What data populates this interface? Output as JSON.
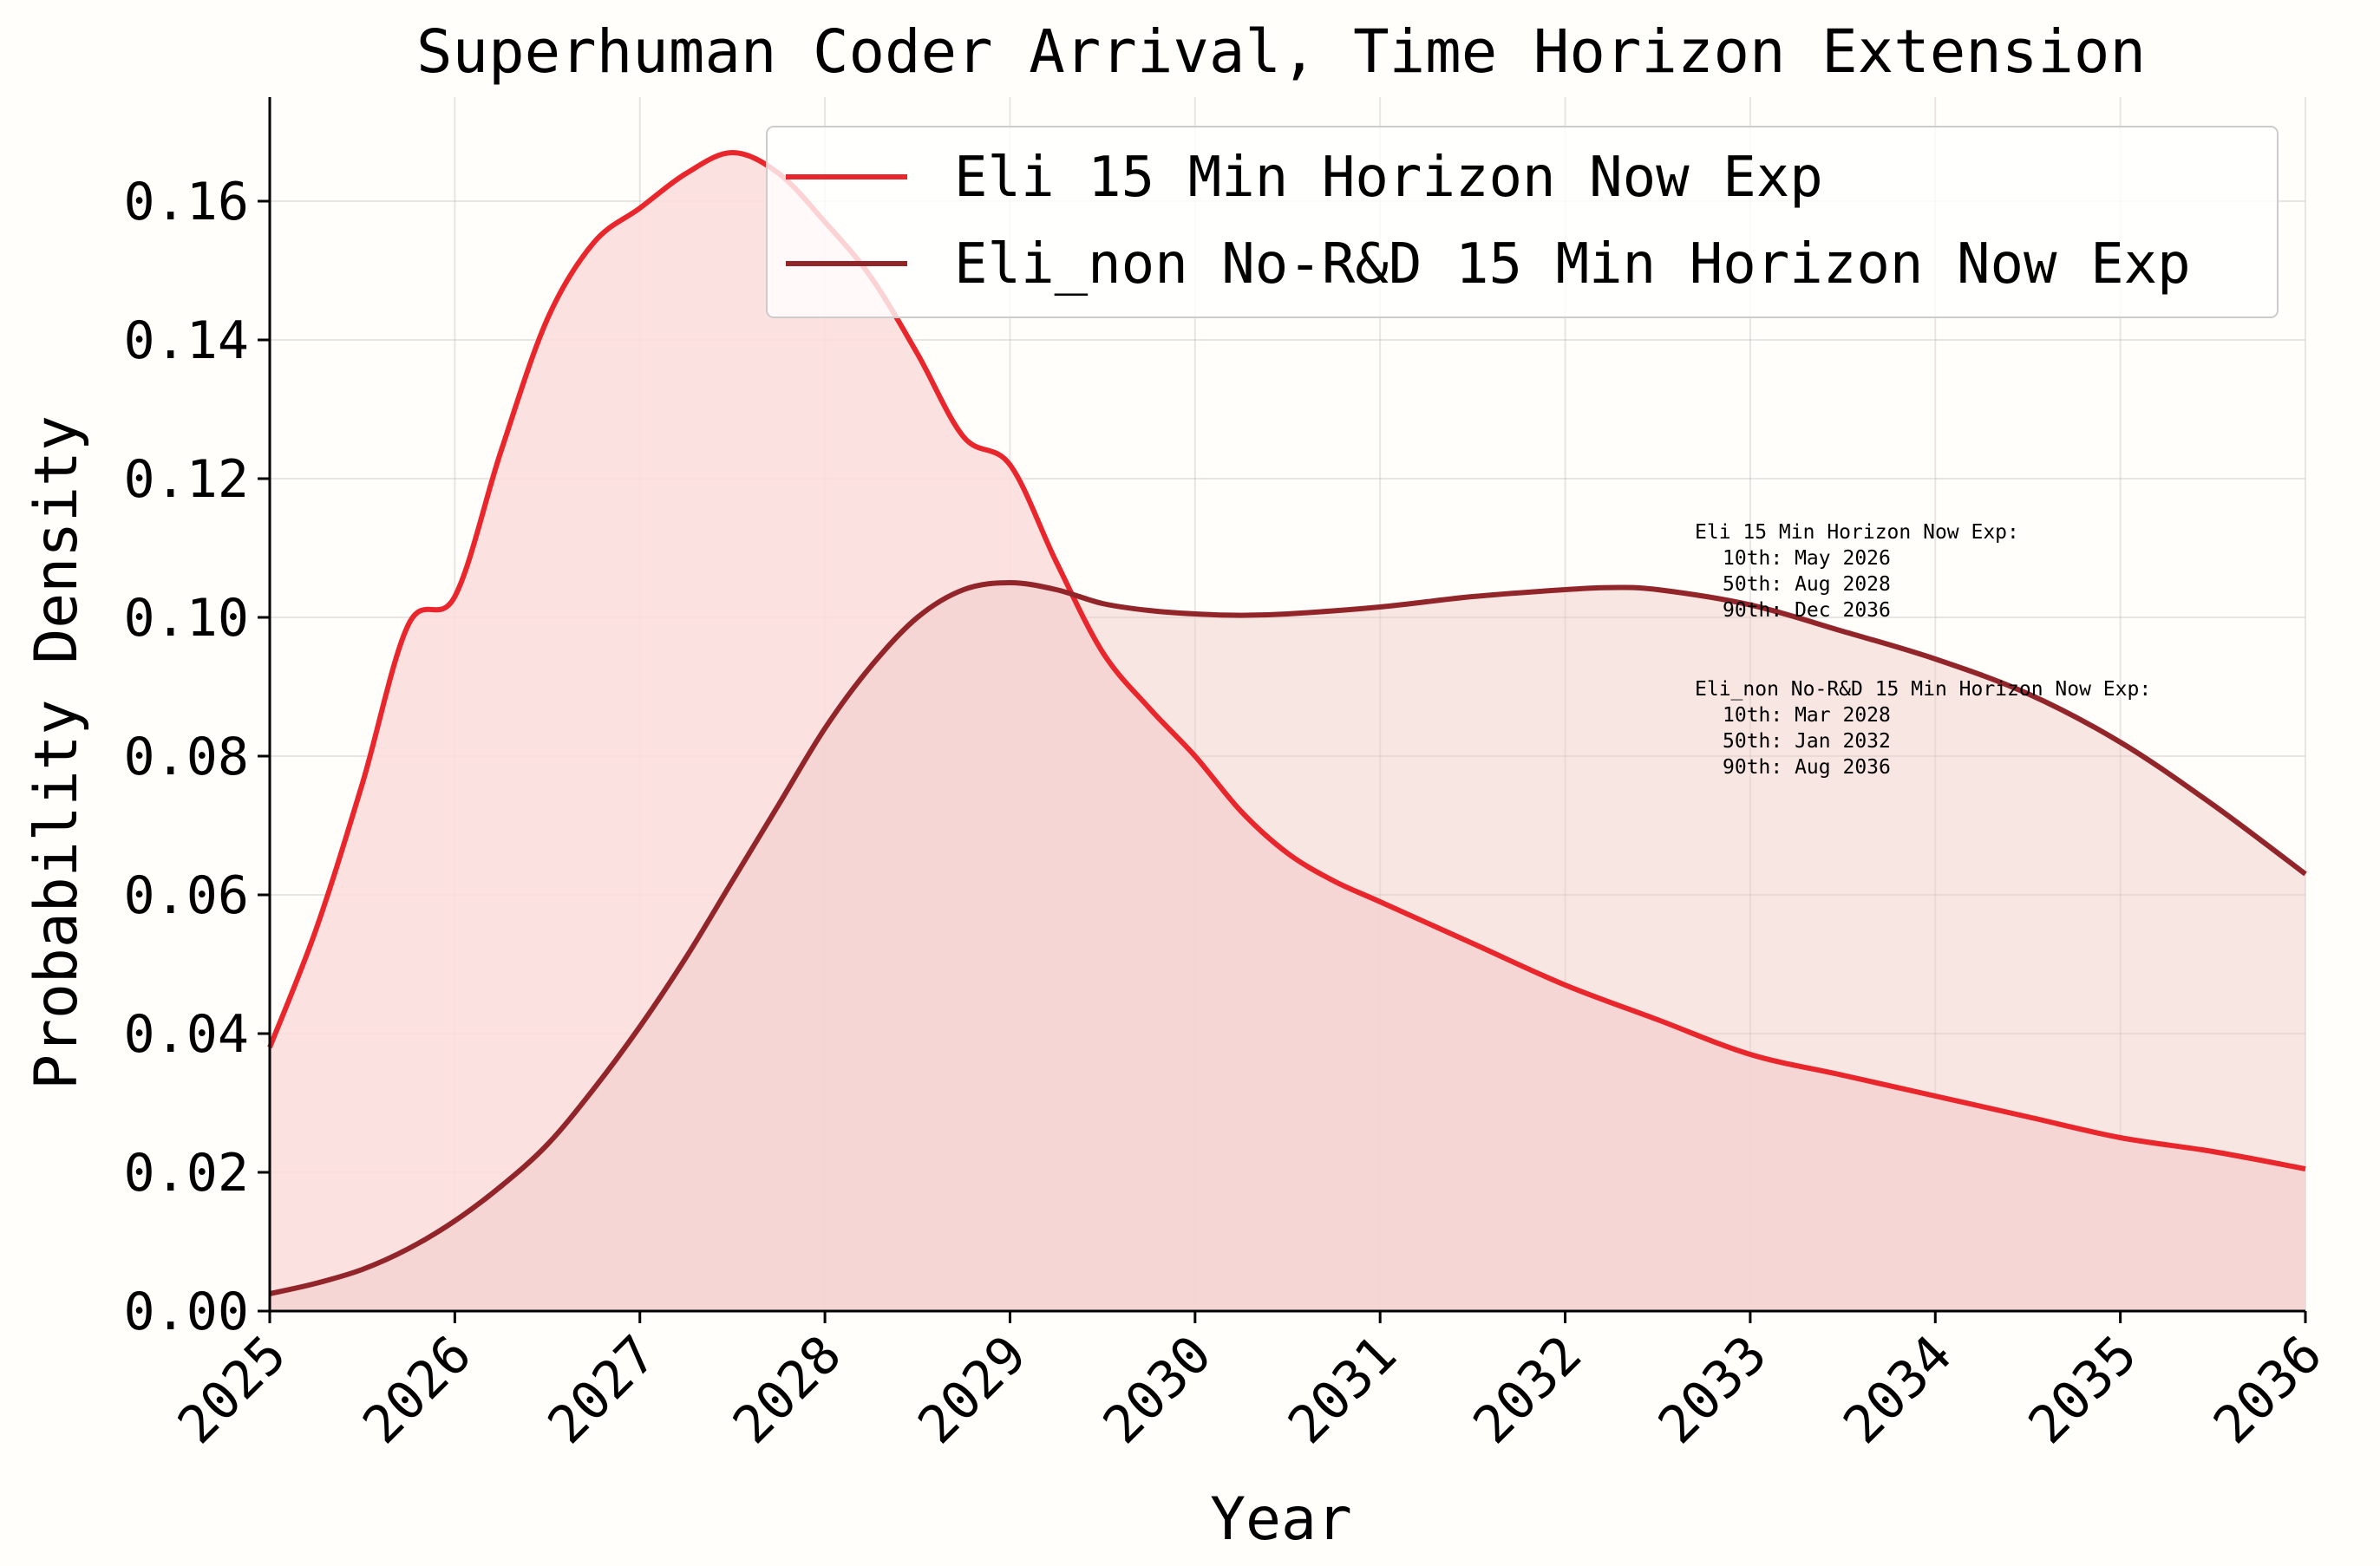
{
  "chart_data": {
    "type": "area",
    "title": "Superhuman Coder Arrival, Time Horizon Extension",
    "xlabel": "Year",
    "ylabel": "Probability Density",
    "xlim": [
      2025,
      2036
    ],
    "ylim": [
      0,
      0.175
    ],
    "x_ticks": [
      "2025",
      "2026",
      "2027",
      "2028",
      "2029",
      "2030",
      "2031",
      "2032",
      "2033",
      "2034",
      "2035",
      "2036"
    ],
    "y_ticks": [
      "0.00",
      "0.02",
      "0.04",
      "0.06",
      "0.08",
      "0.10",
      "0.12",
      "0.14",
      "0.16"
    ],
    "grid": true,
    "legend_position": "top-right",
    "series": [
      {
        "name": "Eli 15 Min Horizon Now Exp",
        "color": "#e8262b",
        "fill": "#fcdcdc",
        "x": [
          2025.0,
          2025.25,
          2025.5,
          2025.75,
          2026.0,
          2026.25,
          2026.5,
          2026.75,
          2027.0,
          2027.25,
          2027.5,
          2027.75,
          2028.0,
          2028.25,
          2028.5,
          2028.75,
          2029.0,
          2029.25,
          2029.5,
          2029.75,
          2030.0,
          2030.25,
          2030.5,
          2030.75,
          2031.0,
          2031.5,
          2032.0,
          2032.5,
          2033.0,
          2033.5,
          2034.0,
          2034.5,
          2035.0,
          2035.5,
          2036.0
        ],
        "y": [
          0.038,
          0.055,
          0.076,
          0.099,
          0.103,
          0.124,
          0.143,
          0.154,
          0.159,
          0.164,
          0.167,
          0.164,
          0.157,
          0.149,
          0.138,
          0.126,
          0.122,
          0.108,
          0.095,
          0.087,
          0.08,
          0.072,
          0.066,
          0.062,
          0.059,
          0.053,
          0.047,
          0.042,
          0.037,
          0.034,
          0.031,
          0.028,
          0.025,
          0.023,
          0.0205
        ]
      },
      {
        "name": "Eli_non No-R&D 15 Min Horizon Now Exp",
        "color": "#922529",
        "fill": "#efc9c6",
        "x": [
          2025.0,
          2025.25,
          2025.5,
          2025.75,
          2026.0,
          2026.25,
          2026.5,
          2026.75,
          2027.0,
          2027.25,
          2027.5,
          2027.75,
          2028.0,
          2028.25,
          2028.5,
          2028.75,
          2029.0,
          2029.25,
          2029.5,
          2029.75,
          2030.0,
          2030.25,
          2030.5,
          2031.0,
          2031.5,
          2032.0,
          2032.25,
          2032.5,
          2033.0,
          2033.5,
          2034.0,
          2034.5,
          2035.0,
          2035.5,
          2036.0
        ],
        "y": [
          0.0025,
          0.004,
          0.006,
          0.009,
          0.013,
          0.018,
          0.024,
          0.032,
          0.041,
          0.051,
          0.062,
          0.073,
          0.084,
          0.093,
          0.1,
          0.104,
          0.105,
          0.104,
          0.102,
          0.101,
          0.1005,
          0.1003,
          0.1005,
          0.1015,
          0.103,
          0.104,
          0.1043,
          0.104,
          0.1018,
          0.098,
          0.094,
          0.089,
          0.082,
          0.073,
          0.063
        ]
      }
    ],
    "annotations": [
      {
        "header": "Eli 15 Min Horizon Now Exp:",
        "lines": [
          "10th: May 2026",
          "50th: Aug 2028",
          "90th: Dec 2036"
        ]
      },
      {
        "header": "Eli_non No-R&D 15 Min Horizon Now Exp:",
        "lines": [
          "10th: Mar 2028",
          "50th: Jan 2032",
          "90th: Aug 2036"
        ]
      }
    ]
  }
}
